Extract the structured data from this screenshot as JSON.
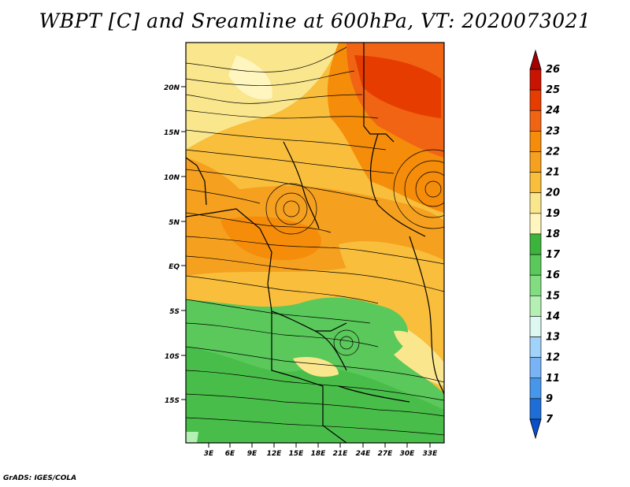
{
  "title": "WBPT [C] and Sreamline at 600hPa, VT: 2020073021",
  "credit": "GrADS: IGES/COLA",
  "map": {
    "lat_labels": [
      "20N",
      "15N",
      "10N",
      "5N",
      "EQ",
      "5S",
      "10S",
      "15S"
    ],
    "lon_labels": [
      "3E",
      "6E",
      "9E",
      "12E",
      "15E",
      "18E",
      "21E",
      "24E",
      "27E",
      "30E",
      "33E"
    ]
  },
  "colorbar": {
    "labels": [
      "26",
      "25",
      "24",
      "23",
      "22",
      "21",
      "20",
      "19",
      "18",
      "17",
      "16",
      "15",
      "14",
      "13",
      "12",
      "11",
      "9",
      "7"
    ],
    "colors": [
      "#a50000",
      "#c81400",
      "#e63c00",
      "#f06414",
      "#f58c0a",
      "#f5a01e",
      "#f8be3c",
      "#fae68c",
      "#fff5be",
      "#3cb43c",
      "#5ac85a",
      "#82dc82",
      "#b4f0b4",
      "#dcf8f0",
      "#a0d2fa",
      "#78b4f5",
      "#4696eb",
      "#1e6ed7",
      "#0a50c8"
    ]
  }
}
